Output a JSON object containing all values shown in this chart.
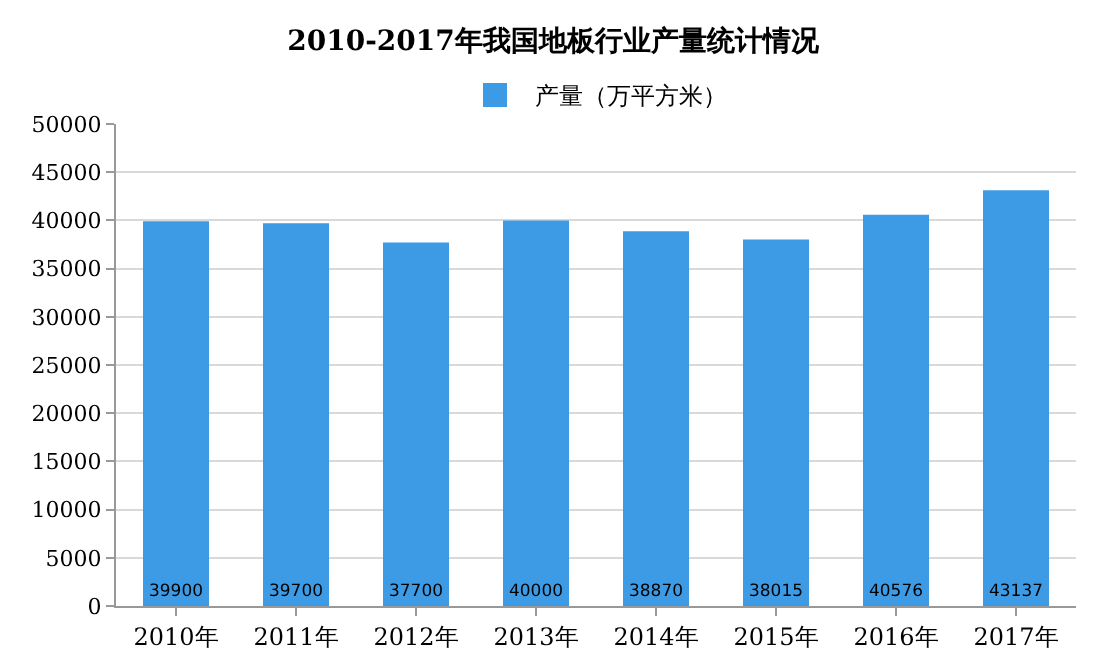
{
  "chart_data": {
    "type": "bar",
    "title": "2010-2017年我国地板行业产量统计情况",
    "categories": [
      "2010年",
      "2011年",
      "2012年",
      "2013年",
      "2014年",
      "2015年",
      "2016年",
      "2017年"
    ],
    "series": [
      {
        "name": "产量（万平方米）",
        "color": "#3d9be6",
        "values": [
          39900,
          39700,
          37700,
          40000,
          38870,
          38015,
          40576,
          43137
        ]
      }
    ],
    "ylim": [
      0,
      50000
    ],
    "yticks": [
      0,
      5000,
      10000,
      15000,
      20000,
      25000,
      30000,
      35000,
      40000,
      45000,
      50000
    ],
    "grid": "y",
    "legend": "top",
    "data_labels": true
  }
}
